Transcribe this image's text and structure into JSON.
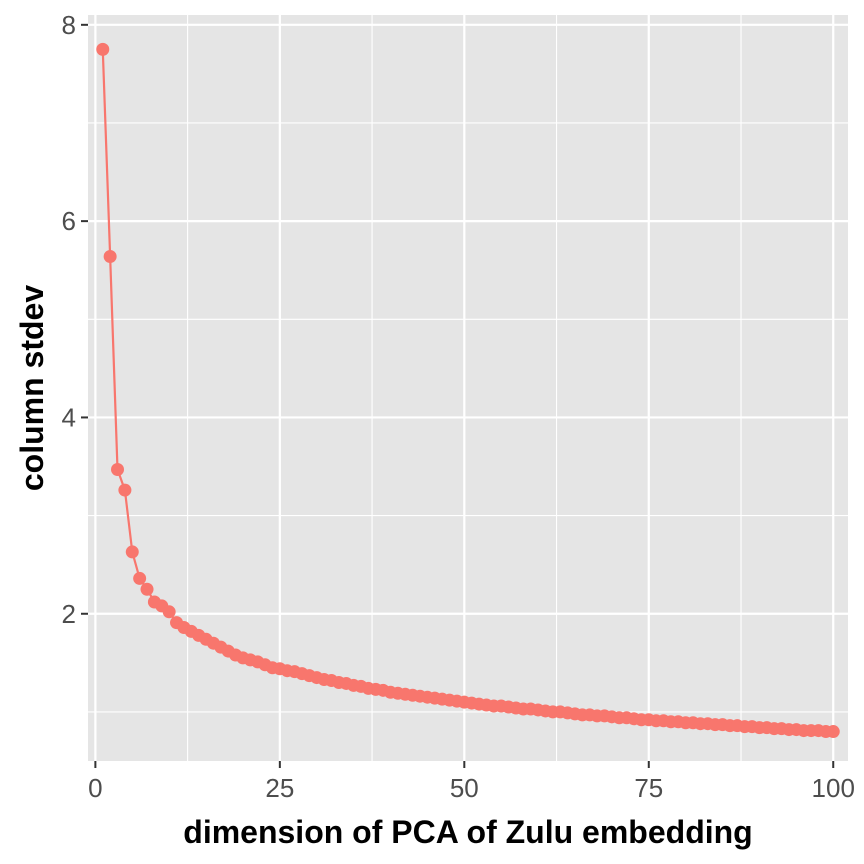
{
  "chart_data": {
    "type": "line",
    "xlabel": "dimension of PCA of Zulu embedding",
    "ylabel": "column stdev",
    "xlim": [
      -1,
      102
    ],
    "ylim": [
      0.5,
      8.1
    ],
    "x_ticks": [
      0,
      25,
      50,
      75,
      100
    ],
    "x_tick_labels": [
      "0",
      "25",
      "50",
      "75",
      "100"
    ],
    "y_ticks": [
      2,
      4,
      6,
      8
    ],
    "y_tick_labels": [
      "2",
      "4",
      "6",
      "8"
    ],
    "grid": true,
    "legend": "none",
    "colors": {
      "series": "#F8766D",
      "panel": "#E5E5E5",
      "grid": "#FFFFFF"
    },
    "series": [
      {
        "x": [
          1,
          2,
          3,
          4,
          5,
          6,
          7,
          8,
          9,
          10,
          11,
          12,
          13,
          14,
          15,
          16,
          17,
          18,
          19,
          20,
          21,
          22,
          23,
          24,
          25,
          26,
          27,
          28,
          29,
          30,
          31,
          32,
          33,
          34,
          35,
          36,
          37,
          38,
          39,
          40,
          41,
          42,
          43,
          44,
          45,
          46,
          47,
          48,
          49,
          50,
          51,
          52,
          53,
          54,
          55,
          56,
          57,
          58,
          59,
          60,
          61,
          62,
          63,
          64,
          65,
          66,
          67,
          68,
          69,
          70,
          71,
          72,
          73,
          74,
          75,
          76,
          77,
          78,
          79,
          80,
          81,
          82,
          83,
          84,
          85,
          86,
          87,
          88,
          89,
          90,
          91,
          92,
          93,
          94,
          95,
          96,
          97,
          98,
          99,
          100
        ],
        "y": [
          7.75,
          5.64,
          3.47,
          3.26,
          2.63,
          2.36,
          2.25,
          2.12,
          2.08,
          2.02,
          1.91,
          1.86,
          1.82,
          1.78,
          1.74,
          1.7,
          1.66,
          1.62,
          1.58,
          1.55,
          1.53,
          1.51,
          1.48,
          1.45,
          1.44,
          1.42,
          1.41,
          1.39,
          1.37,
          1.35,
          1.33,
          1.32,
          1.3,
          1.29,
          1.27,
          1.26,
          1.24,
          1.23,
          1.22,
          1.2,
          1.19,
          1.18,
          1.17,
          1.16,
          1.15,
          1.14,
          1.13,
          1.12,
          1.11,
          1.1,
          1.09,
          1.08,
          1.07,
          1.06,
          1.06,
          1.05,
          1.04,
          1.03,
          1.03,
          1.02,
          1.01,
          1.0,
          1.0,
          0.99,
          0.98,
          0.97,
          0.97,
          0.96,
          0.96,
          0.95,
          0.94,
          0.94,
          0.93,
          0.92,
          0.92,
          0.91,
          0.91,
          0.9,
          0.9,
          0.89,
          0.89,
          0.88,
          0.88,
          0.87,
          0.87,
          0.86,
          0.86,
          0.85,
          0.85,
          0.84,
          0.84,
          0.83,
          0.83,
          0.82,
          0.82,
          0.81,
          0.81,
          0.81,
          0.8,
          0.8
        ]
      }
    ]
  }
}
